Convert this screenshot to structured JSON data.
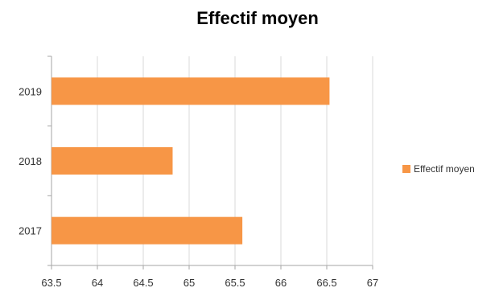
{
  "chart_data": {
    "type": "bar",
    "orientation": "horizontal",
    "title": "Effectif moyen",
    "xlabel": "",
    "ylabel": "",
    "categories": [
      "2017",
      "2018",
      "2019"
    ],
    "series": [
      {
        "name": "Effectif moyen",
        "values": [
          65.58,
          64.82,
          66.53
        ]
      }
    ],
    "xlim": [
      63.5,
      67
    ],
    "xticks": [
      "63.5",
      "64",
      "64.5",
      "65",
      "65.5",
      "66",
      "66.5",
      "67"
    ],
    "grid": true,
    "legend": "right",
    "colors": {
      "bar": "#F79646",
      "grid": "#D9D9D9",
      "axis": "#A6A6A6"
    }
  }
}
